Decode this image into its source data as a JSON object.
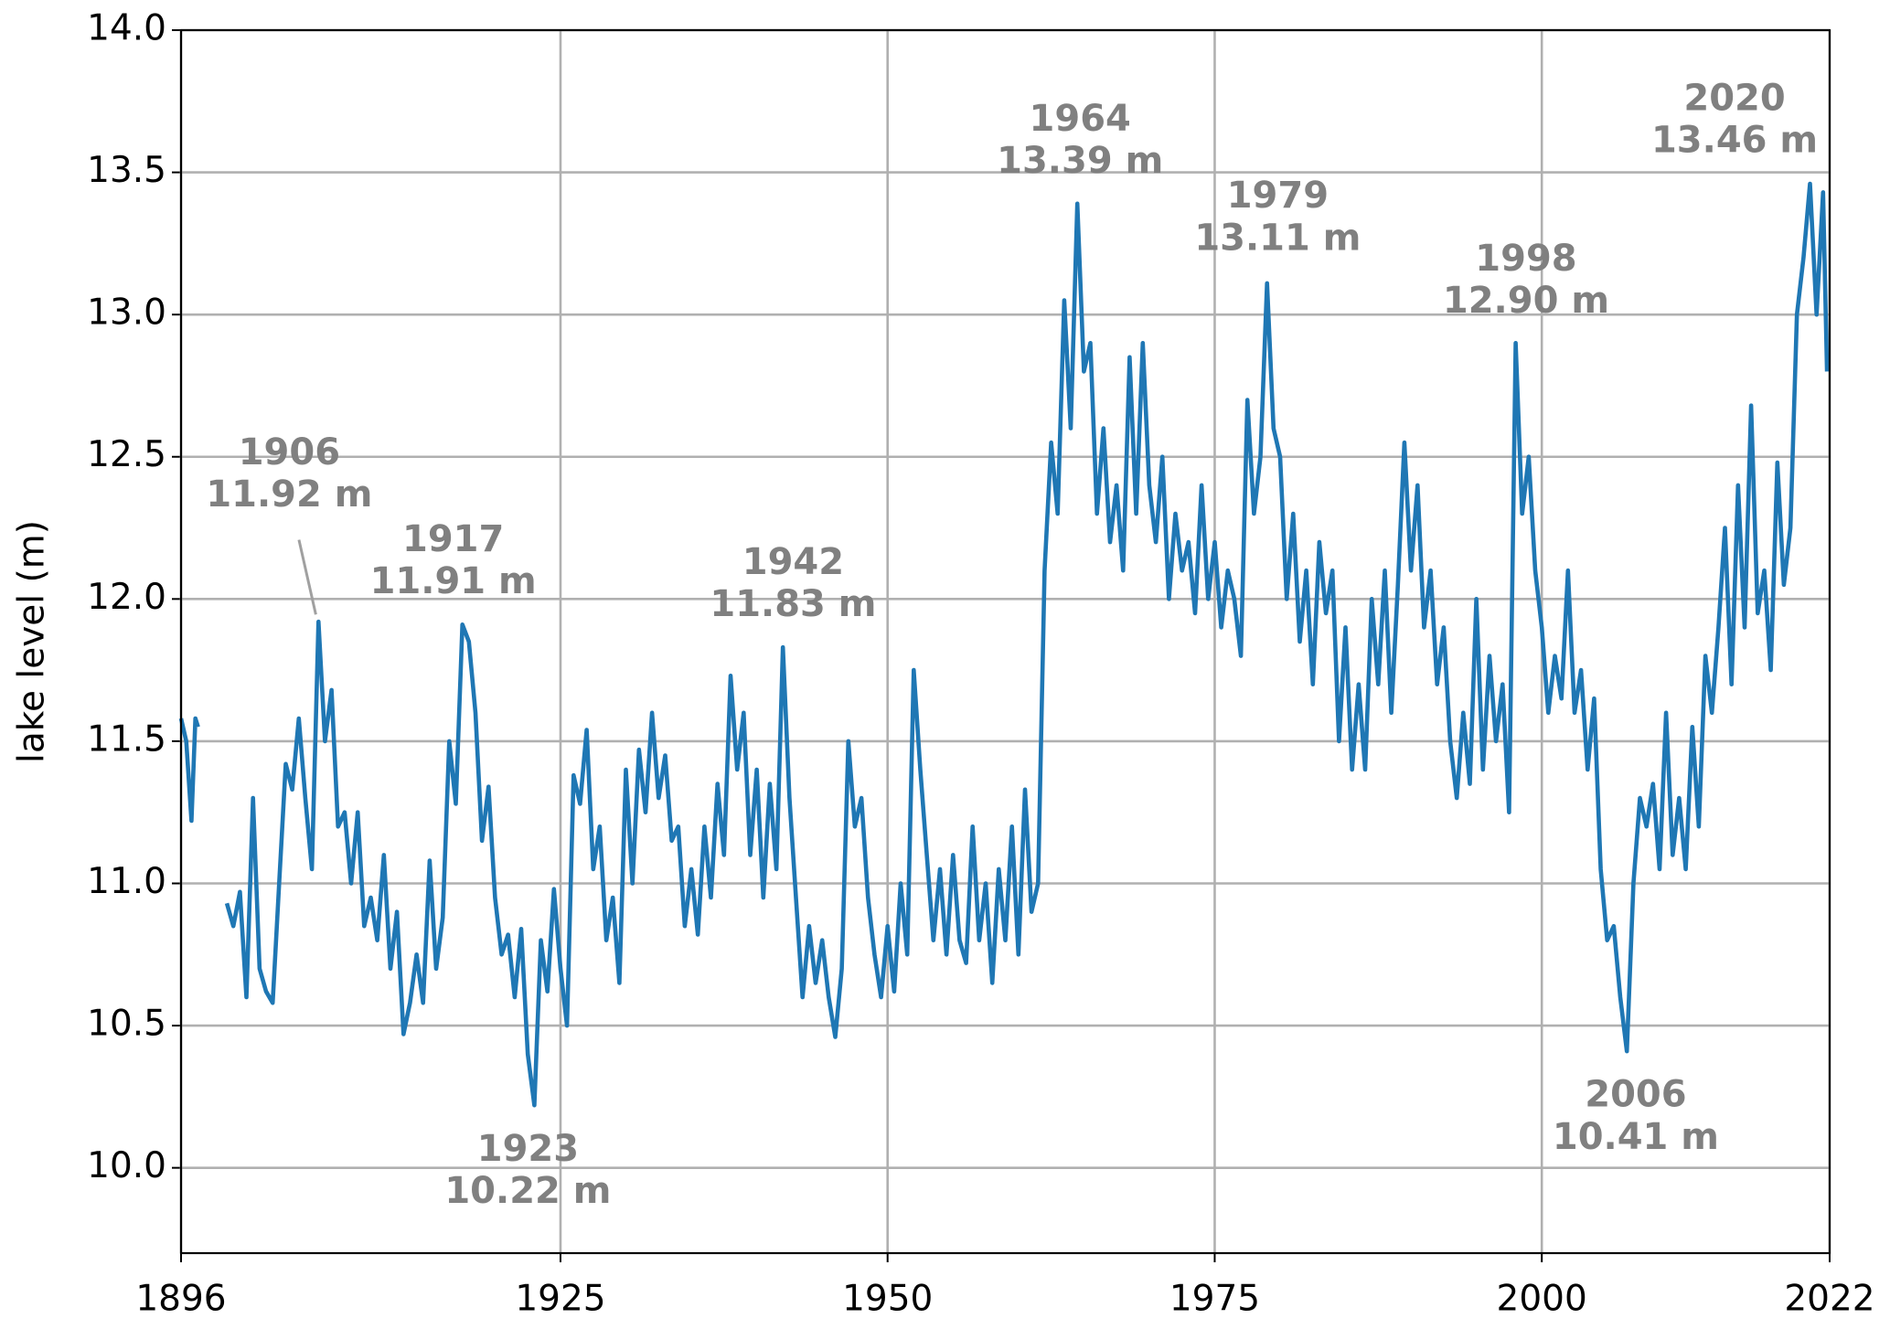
{
  "chart_data": {
    "type": "line",
    "ylabel": "lake level (m)",
    "xlim": [
      1896,
      2022
    ],
    "xticks": [
      1896,
      1925,
      1950,
      1975,
      2000,
      2022
    ],
    "ylim": [
      9.7,
      14.0
    ],
    "yticks": [
      {
        "value": 10,
        "label": "10.0"
      },
      10.5,
      {
        "value": 11,
        "label": "11.0"
      },
      11.5,
      {
        "value": 12,
        "label": "12.0"
      },
      12.5,
      {
        "value": 13,
        "label": "13.0"
      },
      13.5,
      {
        "value": 14,
        "label": "14.0"
      }
    ],
    "grid": true,
    "series": [
      {
        "color": "#1f77b4",
        "x": [
          1896.0,
          1896.4,
          1896.8,
          1897.1,
          1897.3,
          1898.5,
          1899.5,
          1900.0,
          1900.5,
          1901.0,
          1901.5,
          1902.0,
          1902.5,
          1903.0,
          1903.5,
          1904.0,
          1904.5,
          1905.0,
          1905.5,
          1906.0,
          1906.5,
          1907.0,
          1907.5,
          1908.0,
          1908.5,
          1909.0,
          1909.5,
          1910.0,
          1910.5,
          1911.0,
          1911.5,
          1912.0,
          1912.5,
          1913.0,
          1913.5,
          1914.0,
          1914.5,
          1915.0,
          1915.5,
          1916.0,
          1916.5,
          1917.0,
          1917.5,
          1918.0,
          1918.5,
          1919.0,
          1919.5,
          1920.0,
          1920.5,
          1921.0,
          1921.5,
          1922.0,
          1922.5,
          1923.0,
          1923.5,
          1924.0,
          1924.5,
          1925.0,
          1925.5,
          1926.0,
          1926.5,
          1927.0,
          1927.5,
          1928.0,
          1928.5,
          1929.0,
          1929.5,
          1930.0,
          1930.5,
          1931.0,
          1931.5,
          1932.0,
          1932.5,
          1933.0,
          1933.5,
          1934.0,
          1934.5,
          1935.0,
          1935.5,
          1936.0,
          1936.5,
          1937.0,
          1937.5,
          1938.0,
          1938.5,
          1939.0,
          1939.5,
          1940.0,
          1940.5,
          1941.0,
          1941.5,
          1942.0,
          1942.5,
          1943.0,
          1943.5,
          1944.0,
          1944.5,
          1945.0,
          1945.5,
          1946.0,
          1946.5,
          1947.0,
          1947.5,
          1948.0,
          1948.5,
          1949.0,
          1949.5,
          1950.0,
          1950.5,
          1951.0,
          1951.5,
          1952.0,
          1952.5,
          1953.0,
          1953.5,
          1954.0,
          1954.5,
          1955.0,
          1955.5,
          1956.0,
          1956.5,
          1957.0,
          1957.5,
          1958.0,
          1958.5,
          1959.0,
          1959.5,
          1960.0,
          1960.5,
          1961.0,
          1961.5,
          1962.0,
          1962.5,
          1963.0,
          1963.5,
          1964.0,
          1964.5,
          1965.0,
          1965.5,
          1966.0,
          1966.5,
          1967.0,
          1967.5,
          1968.0,
          1968.5,
          1969.0,
          1969.5,
          1970.0,
          1970.5,
          1971.0,
          1971.5,
          1972.0,
          1972.5,
          1973.0,
          1973.5,
          1974.0,
          1974.5,
          1975.0,
          1975.5,
          1976.0,
          1976.5,
          1977.0,
          1977.5,
          1978.0,
          1978.5,
          1979.0,
          1979.5,
          1980.0,
          1980.5,
          1981.0,
          1981.5,
          1982.0,
          1982.5,
          1983.0,
          1983.5,
          1984.0,
          1984.5,
          1985.0,
          1985.5,
          1986.0,
          1986.5,
          1987.0,
          1987.5,
          1988.0,
          1988.5,
          1989.0,
          1989.5,
          1990.0,
          1990.5,
          1991.0,
          1991.5,
          1992.0,
          1992.5,
          1993.0,
          1993.5,
          1994.0,
          1994.5,
          1995.0,
          1995.5,
          1996.0,
          1996.5,
          1997.0,
          1997.5,
          1998.0,
          1998.5,
          1999.0,
          1999.5,
          2000.0,
          2000.5,
          2001.0,
          2001.5,
          2002.0,
          2002.5,
          2003.0,
          2003.5,
          2004.0,
          2004.5,
          2005.0,
          2005.5,
          2006.0,
          2006.5,
          2007.0,
          2007.5,
          2008.0,
          2008.5,
          2009.0,
          2009.5,
          2010.0,
          2010.5,
          2011.0,
          2011.5,
          2012.0,
          2012.5,
          2013.0,
          2013.5,
          2014.0,
          2014.5,
          2015.0,
          2015.5,
          2016.0,
          2016.5,
          2017.0,
          2017.5,
          2018.0,
          2018.5,
          2019.0,
          2019.5,
          2020.0,
          2020.5,
          2021.0,
          2021.5,
          2021.8
        ],
        "values": [
          11.58,
          11.5,
          11.22,
          11.58,
          11.55,
          null,
          10.93,
          10.85,
          10.97,
          10.6,
          11.3,
          10.7,
          10.62,
          10.58,
          11.0,
          11.42,
          11.33,
          11.58,
          11.3,
          11.05,
          11.92,
          11.5,
          11.68,
          11.2,
          11.25,
          11.0,
          11.25,
          10.85,
          10.95,
          10.8,
          11.1,
          10.7,
          10.9,
          10.47,
          10.58,
          10.75,
          10.58,
          11.08,
          10.7,
          10.88,
          11.5,
          11.28,
          11.91,
          11.85,
          11.6,
          11.15,
          11.34,
          10.95,
          10.75,
          10.82,
          10.6,
          10.84,
          10.4,
          10.22,
          10.8,
          10.62,
          10.98,
          10.7,
          10.5,
          11.38,
          11.28,
          11.54,
          11.05,
          11.2,
          10.8,
          10.95,
          10.65,
          11.4,
          11.0,
          11.47,
          11.25,
          11.6,
          11.3,
          11.45,
          11.15,
          11.2,
          10.85,
          11.05,
          10.82,
          11.2,
          10.95,
          11.35,
          11.1,
          11.73,
          11.4,
          11.6,
          11.1,
          11.4,
          10.95,
          11.35,
          11.05,
          11.83,
          11.3,
          10.95,
          10.6,
          10.85,
          10.65,
          10.8,
          10.6,
          10.46,
          10.7,
          11.5,
          11.2,
          11.3,
          10.95,
          10.75,
          10.6,
          10.85,
          10.62,
          11.0,
          10.75,
          11.75,
          11.4,
          11.1,
          10.8,
          11.05,
          10.75,
          11.1,
          10.8,
          10.72,
          11.2,
          10.8,
          11.0,
          10.65,
          11.05,
          10.8,
          11.2,
          10.75,
          11.33,
          10.9,
          11.0,
          12.1,
          12.55,
          12.3,
          13.05,
          12.6,
          13.39,
          12.8,
          12.9,
          12.3,
          12.6,
          12.2,
          12.4,
          12.1,
          12.85,
          12.3,
          12.9,
          12.4,
          12.2,
          12.5,
          12.0,
          12.3,
          12.1,
          12.2,
          11.95,
          12.4,
          12.0,
          12.2,
          11.9,
          12.1,
          12.0,
          11.8,
          12.7,
          12.3,
          12.5,
          13.11,
          12.6,
          12.5,
          12.0,
          12.3,
          11.85,
          12.1,
          11.7,
          12.2,
          11.95,
          12.1,
          11.5,
          11.9,
          11.4,
          11.7,
          11.4,
          12.0,
          11.7,
          12.1,
          11.6,
          12.05,
          12.55,
          12.1,
          12.4,
          11.9,
          12.1,
          11.7,
          11.9,
          11.5,
          11.3,
          11.6,
          11.35,
          12.0,
          11.4,
          11.8,
          11.5,
          11.7,
          11.25,
          12.9,
          12.3,
          12.5,
          12.1,
          11.9,
          11.6,
          11.8,
          11.65,
          12.1,
          11.6,
          11.75,
          11.4,
          11.65,
          11.05,
          10.8,
          10.85,
          10.6,
          10.41,
          11.0,
          11.3,
          11.2,
          11.35,
          11.05,
          11.6,
          11.1,
          11.3,
          11.05,
          11.55,
          11.2,
          11.8,
          11.6,
          11.9,
          12.25,
          11.7,
          12.4,
          11.9,
          12.68,
          11.95,
          12.1,
          11.75,
          12.48,
          12.05,
          12.25,
          13.0,
          13.2,
          13.46,
          13.0,
          13.43,
          12.8
        ]
      }
    ],
    "annotations": [
      {
        "year": "1906",
        "label": "11.92 m",
        "arrow": true
      },
      {
        "year": "1917",
        "label": "11.91 m"
      },
      {
        "year": "1923",
        "label": "10.22 m"
      },
      {
        "year": "1942",
        "label": "11.83 m"
      },
      {
        "year": "1964",
        "label": "13.39 m"
      },
      {
        "year": "1979",
        "label": "13.11 m"
      },
      {
        "year": "1998",
        "label": "12.90 m"
      },
      {
        "year": "2006",
        "label": "10.41 m"
      },
      {
        "year": "2020",
        "label": "13.46 m"
      }
    ]
  }
}
